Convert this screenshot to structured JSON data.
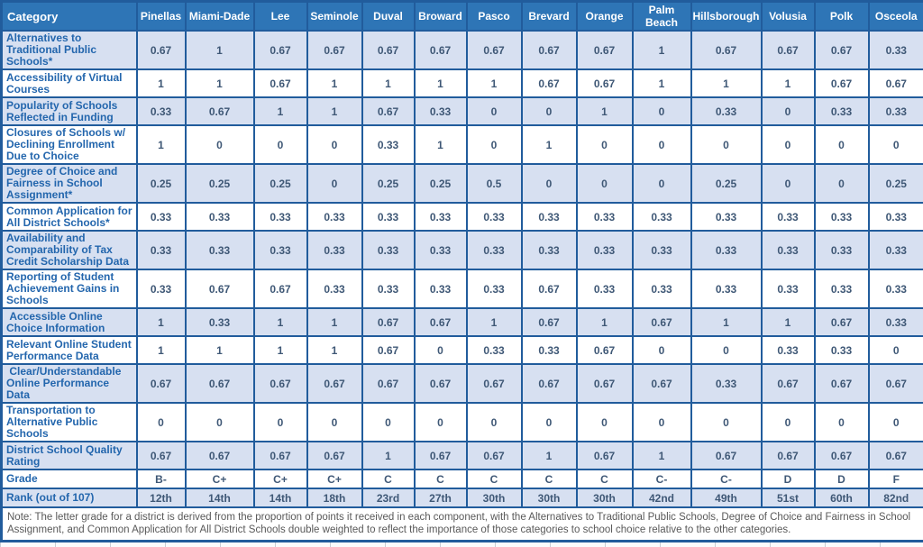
{
  "title": "School Choice District Scorecard",
  "colors": {
    "header_bg": "#2E75B6",
    "header_text": "#FFFFFF",
    "border": "#215C9C",
    "light_row_bg": "#D7E0F1",
    "white_row_bg": "#FFFFFF",
    "row_label_text": "#2366AD",
    "value_text": "#3F5876",
    "note_text": "#595959"
  },
  "chart_data": {
    "type": "table",
    "columns": [
      "Category",
      "Pinellas",
      "Miami-Dade",
      "Lee",
      "Seminole",
      "Duval",
      "Broward",
      "Pasco",
      "Brevard",
      "Orange",
      "Palm Beach",
      "Hillsborough",
      "Volusia",
      "Polk",
      "Osceola"
    ],
    "rows": [
      {
        "label": "Alternatives to Traditional Public Schools*",
        "values": [
          "0.67",
          "1",
          "0.67",
          "0.67",
          "0.67",
          "0.67",
          "0.67",
          "0.67",
          "0.67",
          "1",
          "0.67",
          "0.67",
          "0.67",
          "0.33"
        ]
      },
      {
        "label": "Accessibility of Virtual Courses",
        "values": [
          "1",
          "1",
          "0.67",
          "1",
          "1",
          "1",
          "1",
          "0.67",
          "0.67",
          "1",
          "1",
          "1",
          "0.67",
          "0.67"
        ]
      },
      {
        "label": "Popularity of Schools Reflected in Funding",
        "values": [
          "0.33",
          "0.67",
          "1",
          "1",
          "0.67",
          "0.33",
          "0",
          "0",
          "1",
          "0",
          "0.33",
          "0",
          "0.33",
          "0.33"
        ]
      },
      {
        "label": "Closures of Schools w/ Declining Enrollment Due to Choice",
        "values": [
          "1",
          "0",
          "0",
          "0",
          "0.33",
          "1",
          "0",
          "1",
          "0",
          "0",
          "0",
          "0",
          "0",
          "0"
        ]
      },
      {
        "label": "Degree of Choice and Fairness in School Assignment*",
        "values": [
          "0.25",
          "0.25",
          "0.25",
          "0",
          "0.25",
          "0.25",
          "0.5",
          "0",
          "0",
          "0",
          "0.25",
          "0",
          "0",
          "0.25"
        ]
      },
      {
        "label": "Common Application for All District Schools*",
        "values": [
          "0.33",
          "0.33",
          "0.33",
          "0.33",
          "0.33",
          "0.33",
          "0.33",
          "0.33",
          "0.33",
          "0.33",
          "0.33",
          "0.33",
          "0.33",
          "0.33"
        ]
      },
      {
        "label": "Availability and Comparability of Tax Credit Scholarship Data",
        "values": [
          "0.33",
          "0.33",
          "0.33",
          "0.33",
          "0.33",
          "0.33",
          "0.33",
          "0.33",
          "0.33",
          "0.33",
          "0.33",
          "0.33",
          "0.33",
          "0.33"
        ]
      },
      {
        "label": "Reporting of Student Achievement Gains in Schools",
        "values": [
          "0.33",
          "0.67",
          "0.67",
          "0.33",
          "0.33",
          "0.33",
          "0.33",
          "0.67",
          "0.33",
          "0.33",
          "0.33",
          "0.33",
          "0.33",
          "0.33"
        ]
      },
      {
        "label": " Accessible Online Choice Information",
        "values": [
          "1",
          "0.33",
          "1",
          "1",
          "0.67",
          "0.67",
          "1",
          "0.67",
          "1",
          "0.67",
          "1",
          "1",
          "0.67",
          "0.33"
        ]
      },
      {
        "label": "Relevant Online Student Performance Data",
        "values": [
          "1",
          "1",
          "1",
          "1",
          "0.67",
          "0",
          "0.33",
          "0.33",
          "0.67",
          "0",
          "0",
          "0.33",
          "0.33",
          "0"
        ]
      },
      {
        "label": " Clear/Understandable Online Performance Data",
        "values": [
          "0.67",
          "0.67",
          "0.67",
          "0.67",
          "0.67",
          "0.67",
          "0.67",
          "0.67",
          "0.67",
          "0.67",
          "0.33",
          "0.67",
          "0.67",
          "0.67"
        ]
      },
      {
        "label": "Transportation to Alternative Public Schools",
        "values": [
          "0",
          "0",
          "0",
          "0",
          "0",
          "0",
          "0",
          "0",
          "0",
          "0",
          "0",
          "0",
          "0",
          "0"
        ]
      },
      {
        "label": "District School Quality Rating",
        "values": [
          "0.67",
          "0.67",
          "0.67",
          "0.67",
          "1",
          "0.67",
          "0.67",
          "1",
          "0.67",
          "1",
          "0.67",
          "0.67",
          "0.67",
          "0.67"
        ]
      },
      {
        "label": "Grade",
        "values": [
          "B-",
          "C+",
          "C+",
          "C+",
          "C",
          "C",
          "C",
          "C",
          "C",
          "C-",
          "C-",
          "D",
          "D",
          "F"
        ]
      },
      {
        "label": "Rank (out of 107)",
        "values": [
          "12th",
          "14th",
          "14th",
          "18th",
          "23rd",
          "27th",
          "30th",
          "30th",
          "30th",
          "42nd",
          "49th",
          "51st",
          "60th",
          "82nd"
        ]
      }
    ],
    "note": "Note: The letter grade for a district is derived from the proportion of points it received in each component, with the Alternatives to Traditional Public Schools, Degree of Choice and Fairness in School Assignment, and Common Application for All District Schools double weighted to reflect the importance of those categories to school choice relative to the other categories."
  }
}
